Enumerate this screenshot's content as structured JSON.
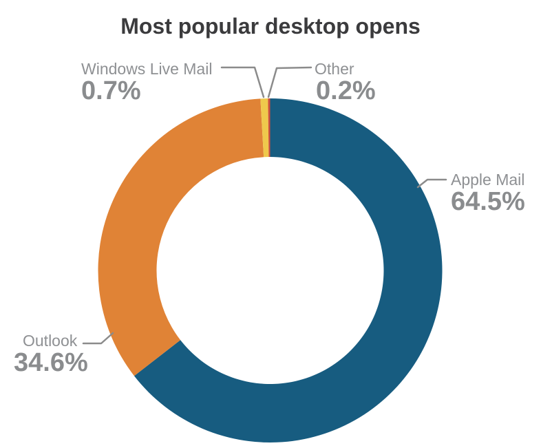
{
  "page": {
    "background": "#ffffff"
  },
  "chart_data": {
    "type": "pie",
    "variant": "donut",
    "title": "Most popular desktop opens",
    "direction": "clockwise",
    "start_angle_deg": 0,
    "legend_position": "callout-labels",
    "total": 100,
    "segments": [
      {
        "label": "Apple Mail",
        "value": 64.5,
        "value_label": "64.5%",
        "color": "#175C80",
        "label_side": "right"
      },
      {
        "label": "Outlook",
        "value": 34.6,
        "value_label": "34.6%",
        "color": "#E08336",
        "label_side": "left"
      },
      {
        "label": "Windows Live Mail",
        "value": 0.7,
        "value_label": "0.7%",
        "color": "#EFC94C",
        "label_side": "top-left"
      },
      {
        "label": "Other",
        "value": 0.2,
        "value_label": "0.2%",
        "color": "#D0503C",
        "label_side": "top-right"
      }
    ]
  },
  "colors": {
    "title_text": "#3B3B3D",
    "label_text": "#8E9093",
    "value_text": "#8A8C8E",
    "callout_line": "#8B8B8B"
  }
}
